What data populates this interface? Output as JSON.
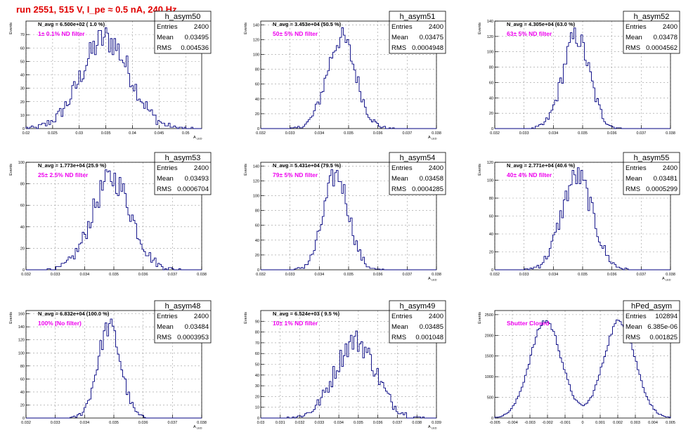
{
  "page_title": "run 2551,   515 V, I_pe ≈ 0.5 nA, 240 Hz",
  "colors": {
    "title": "#e00000",
    "histogram": "#000080",
    "label": "#ee00ee",
    "grid": "#999999"
  },
  "chart_data": [
    {
      "type": "histogram",
      "name": "h_asym50",
      "navg": "N_avg = 6.500e+02 ( 1.0 %)",
      "label": "1± 0.1% ND filter",
      "stats": [
        [
          "Entries",
          "2400"
        ],
        [
          "Mean",
          "0.03495"
        ],
        [
          "RMS",
          "0.004536"
        ]
      ],
      "ylabel": "Events",
      "xlabel": "A_LED",
      "xlim": [
        0.02,
        0.053
      ],
      "ylim": [
        0,
        80
      ],
      "xticks": [
        0.02,
        0.025,
        0.03,
        0.035,
        0.04,
        0.045,
        0.05
      ],
      "xtick_labels": [
        "0.02",
        "0.025",
        "0.03",
        "0.035",
        "0.04",
        "0.045",
        "0.05"
      ],
      "yticks": [
        0,
        10,
        20,
        30,
        40,
        50,
        60,
        70
      ],
      "dist": {
        "mu": 0.03495,
        "sigma": 0.004536,
        "peak": 67
      }
    },
    {
      "type": "histogram",
      "name": "h_asym51",
      "navg": "N_avg = 3.453e+04 (50.5 %)",
      "label": "50± 5% ND filter",
      "stats": [
        [
          "Entries",
          "2400"
        ],
        [
          "Mean",
          "0.03475"
        ],
        [
          "RMS",
          "0.0004948"
        ]
      ],
      "ylabel": "Events",
      "xlabel": "A_LED",
      "xlim": [
        0.032,
        0.038
      ],
      "ylim": [
        0,
        145
      ],
      "xticks": [
        0.032,
        0.033,
        0.034,
        0.035,
        0.036,
        0.037,
        0.038
      ],
      "xtick_labels": [
        "0.032",
        "0.033",
        "0.034",
        "0.035",
        "0.036",
        "0.037",
        "0.038"
      ],
      "yticks": [
        0,
        20,
        40,
        60,
        80,
        100,
        120,
        140
      ],
      "dist": {
        "mu": 0.03475,
        "sigma": 0.0004948,
        "peak": 122
      }
    },
    {
      "type": "histogram",
      "name": "h_asym52",
      "navg": "N_avg = 4.305e+04 (63.0 %)",
      "label": "63± 5% ND filter",
      "stats": [
        [
          "Entries",
          "2400"
        ],
        [
          "Mean",
          "0.03478"
        ],
        [
          "RMS",
          "0.0004562"
        ]
      ],
      "ylabel": "Events",
      "xlabel": "",
      "xlim": [
        0.032,
        0.038
      ],
      "ylim": [
        0,
        140
      ],
      "xticks": [
        0.032,
        0.033,
        0.034,
        0.035,
        0.036,
        0.037,
        0.038
      ],
      "xtick_labels": [
        "0.032",
        "0.033",
        "0.034",
        "0.035",
        "0.036",
        "0.037",
        "0.038"
      ],
      "yticks": [
        0,
        20,
        40,
        60,
        80,
        100,
        120,
        140
      ],
      "dist": {
        "mu": 0.03478,
        "sigma": 0.0004562,
        "peak": 120
      }
    },
    {
      "type": "histogram",
      "name": "h_asym53",
      "navg": "N_avg = 1.773e+04 (25.9 %)",
      "label": "25± 2.5% ND filter",
      "stats": [
        [
          "Entries",
          "2400"
        ],
        [
          "Mean",
          "0.03493"
        ],
        [
          "RMS",
          "0.0006704"
        ]
      ],
      "ylabel": "Events",
      "xlabel": "",
      "xlim": [
        0.032,
        0.038
      ],
      "ylim": [
        0,
        100
      ],
      "xticks": [
        0.032,
        0.033,
        0.034,
        0.035,
        0.036,
        0.037,
        0.038
      ],
      "xtick_labels": [
        "0.032",
        "0.033",
        "0.034",
        "0.035",
        "0.036",
        "0.037",
        "0.038"
      ],
      "yticks": [
        0,
        20,
        40,
        60,
        80,
        100
      ],
      "dist": {
        "mu": 0.03493,
        "sigma": 0.0006704,
        "peak": 85
      }
    },
    {
      "type": "histogram",
      "name": "h_asym54",
      "navg": "N_avg = 5.431e+04 (79.5 %)",
      "label": "79± 5% ND filter",
      "stats": [
        [
          "Entries",
          "2400"
        ],
        [
          "Mean",
          "0.03458"
        ],
        [
          "RMS",
          "0.0004285"
        ]
      ],
      "ylabel": "Events",
      "xlabel": "A_LED",
      "xlim": [
        0.032,
        0.038
      ],
      "ylim": [
        0,
        145
      ],
      "xticks": [
        0.032,
        0.033,
        0.034,
        0.035,
        0.036,
        0.037,
        0.038
      ],
      "xtick_labels": [
        "0.032",
        "0.033",
        "0.034",
        "0.035",
        "0.036",
        "0.037",
        "0.038"
      ],
      "yticks": [
        0,
        20,
        40,
        60,
        80,
        100,
        120,
        140
      ],
      "dist": {
        "mu": 0.03458,
        "sigma": 0.0004285,
        "peak": 128
      }
    },
    {
      "type": "histogram",
      "name": "h_asym55",
      "navg": "N_avg = 2.771e+04 (40.6 %)",
      "label": "40± 4% ND filter",
      "stats": [
        [
          "Entries",
          "2400"
        ],
        [
          "Mean",
          "0.03481"
        ],
        [
          "RMS",
          "0.0005299"
        ]
      ],
      "ylabel": "Events",
      "xlabel": "A_LED",
      "xlim": [
        0.032,
        0.038
      ],
      "ylim": [
        0,
        120
      ],
      "xticks": [
        0.032,
        0.033,
        0.034,
        0.035,
        0.036,
        0.037,
        0.038
      ],
      "xtick_labels": [
        "0.032",
        "0.033",
        "0.034",
        "0.035",
        "0.036",
        "0.037",
        "0.038"
      ],
      "yticks": [
        0,
        20,
        40,
        60,
        80,
        100,
        120
      ],
      "dist": {
        "mu": 0.03481,
        "sigma": 0.0005299,
        "peak": 104
      }
    },
    {
      "type": "histogram",
      "name": "h_asym48",
      "navg": "N_avg = 6.832e+04 (100.0 %)",
      "label": "100% (No filter)",
      "stats": [
        [
          "Entries",
          "2400"
        ],
        [
          "Mean",
          "0.03484"
        ],
        [
          "RMS",
          "0.0003953"
        ]
      ],
      "ylabel": "Events",
      "xlabel": "A_LED",
      "xlim": [
        0.032,
        0.038
      ],
      "ylim": [
        0,
        165
      ],
      "xticks": [
        0.032,
        0.033,
        0.034,
        0.035,
        0.036,
        0.037,
        0.038
      ],
      "xtick_labels": [
        "0.032",
        "0.033",
        "0.034",
        "0.035",
        "0.036",
        "0.037",
        "0.038"
      ],
      "yticks": [
        0,
        20,
        40,
        60,
        80,
        100,
        120,
        140,
        160
      ],
      "dist": {
        "mu": 0.03484,
        "sigma": 0.0003953,
        "peak": 140
      }
    },
    {
      "type": "histogram",
      "name": "h_asym49",
      "navg": "N_avg = 6.524e+03 ( 9.5 %)",
      "label": "10± 1% ND filter",
      "stats": [
        [
          "Entries",
          "2400"
        ],
        [
          "Mean",
          "0.03485"
        ],
        [
          "RMS",
          "0.001048"
        ]
      ],
      "ylabel": "Events",
      "xlabel": "A_LED",
      "xlim": [
        0.03,
        0.039
      ],
      "ylim": [
        0,
        100
      ],
      "xticks": [
        0.03,
        0.031,
        0.032,
        0.033,
        0.034,
        0.035,
        0.036,
        0.037,
        0.038,
        0.039
      ],
      "xtick_labels": [
        "0.03",
        "0.031",
        "0.032",
        "0.033",
        "0.034",
        "0.035",
        "0.036",
        "0.037",
        "0.038",
        "0.039"
      ],
      "yticks": [
        0,
        10,
        20,
        30,
        40,
        50,
        60,
        70,
        80,
        90
      ],
      "dist": {
        "mu": 0.03485,
        "sigma": 0.001048,
        "peak": 72
      }
    },
    {
      "type": "histogram",
      "name": "hPed_asym",
      "navg": "",
      "label": "Shutter Closed",
      "stats": [
        [
          "Entries",
          "102894"
        ],
        [
          "Mean",
          "6.385e-06"
        ],
        [
          "RMS",
          "0.001825"
        ]
      ],
      "ylabel": "Events",
      "xlabel": "",
      "xlim": [
        -0.005,
        0.005
      ],
      "ylim": [
        0,
        2600
      ],
      "xticks": [
        -0.005,
        -0.004,
        -0.003,
        -0.002,
        -0.001,
        0,
        0.001,
        0.002,
        0.003,
        0.004,
        0.005
      ],
      "xtick_labels": [
        "-0.005",
        "-0.004",
        "-0.003",
        "-0.002",
        "-0.001",
        "0",
        "0.001",
        "0.002",
        "0.003",
        "0.004",
        "0.005"
      ],
      "yticks": [
        0,
        500,
        1000,
        1500,
        2000,
        2500
      ],
      "dist": {
        "bimodal": true,
        "mu1": -0.0021,
        "mu2": 0.0021,
        "sigma": 0.0009,
        "peak": 2350
      }
    }
  ]
}
